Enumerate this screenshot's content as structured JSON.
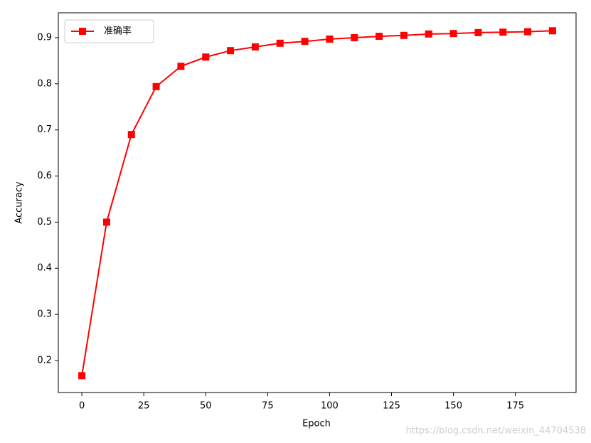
{
  "chart_data": {
    "type": "line",
    "x": [
      0,
      10,
      20,
      30,
      40,
      50,
      60,
      70,
      80,
      90,
      100,
      110,
      120,
      130,
      140,
      150,
      160,
      170,
      180,
      190
    ],
    "series": [
      {
        "name": "准确率",
        "color": "#ff0000",
        "marker": "square",
        "values": [
          0.167,
          0.5,
          0.69,
          0.794,
          0.838,
          0.858,
          0.872,
          0.88,
          0.888,
          0.892,
          0.897,
          0.9,
          0.903,
          0.905,
          0.908,
          0.909,
          0.911,
          0.912,
          0.913,
          0.915
        ]
      }
    ],
    "x_label": "Epoch",
    "y_label": "Accuracy",
    "xlim": [
      -9.5,
      199.5
    ],
    "xticks": [
      0,
      25,
      50,
      75,
      100,
      125,
      150,
      175
    ],
    "ylim": [
      0.1305,
      0.954
    ],
    "yticks": [
      0.2,
      0.3,
      0.4,
      0.5,
      0.6,
      0.7,
      0.8,
      0.9
    ],
    "legend": "upper left",
    "watermark": "https://blog.csdn.net/weixin_44704538"
  }
}
